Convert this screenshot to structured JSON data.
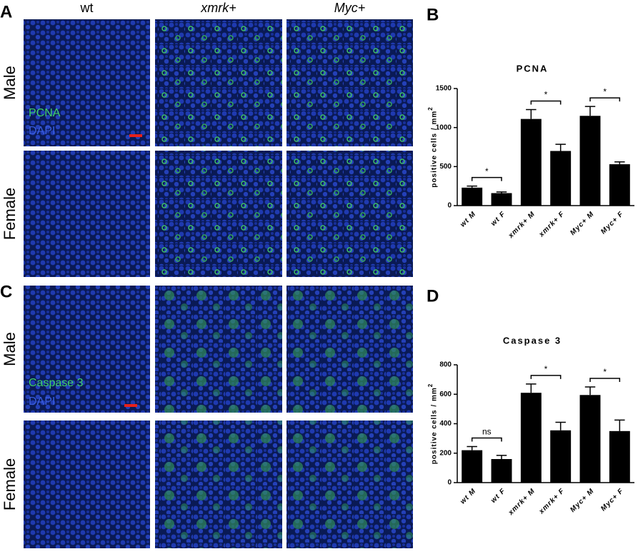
{
  "panel_letters": [
    "A",
    "B",
    "C",
    "D"
  ],
  "columns": [
    "wt",
    "xmrk+",
    "Myc+"
  ],
  "rows": [
    "Male",
    "Female"
  ],
  "overlays": {
    "top": [
      "PCNA",
      "DAPI"
    ],
    "bottom": [
      "Caspase 3",
      "DAPI"
    ]
  },
  "chart_data": [
    {
      "type": "bar",
      "title": "PCNA",
      "y_label": "positive cells / mm",
      "y_label_sup": "2",
      "categories": [
        "wt M",
        "wt F",
        "xmrk+ M",
        "xmrk+ F",
        "Myc+ M",
        "Myc+ F"
      ],
      "values": [
        230,
        160,
        1110,
        700,
        1150,
        530
      ],
      "errors": [
        20,
        15,
        120,
        85,
        120,
        30
      ],
      "color": "#000000",
      "ylim": [
        0,
        1500
      ],
      "yticks": [
        0,
        500,
        1000,
        1500
      ],
      "significance": [
        {
          "from": 0,
          "to": 1,
          "label": "*"
        },
        {
          "from": 2,
          "to": 3,
          "label": "*"
        },
        {
          "from": 4,
          "to": 5,
          "label": "*"
        }
      ]
    },
    {
      "type": "bar",
      "title": "Caspase 3",
      "y_label": "positive cells / mm",
      "y_label_sup": "2",
      "categories": [
        "wt M",
        "wt F",
        "xmrk+ M",
        "xmrk+ F",
        "Myc+ M",
        "Myc+ F"
      ],
      "values": [
        220,
        160,
        610,
        355,
        595,
        350
      ],
      "errors": [
        25,
        25,
        60,
        55,
        55,
        75
      ],
      "color": "#000000",
      "ylim": [
        0,
        800
      ],
      "yticks": [
        0,
        200,
        400,
        600,
        800
      ],
      "significance": [
        {
          "from": 0,
          "to": 1,
          "label": "ns"
        },
        {
          "from": 2,
          "to": 3,
          "label": "*"
        },
        {
          "from": 4,
          "to": 5,
          "label": "*"
        }
      ]
    }
  ]
}
